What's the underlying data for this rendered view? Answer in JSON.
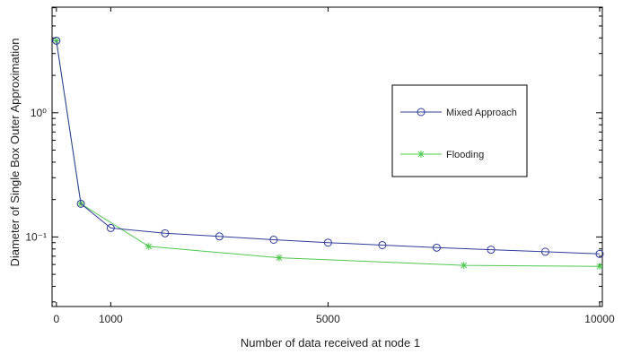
{
  "chart_data": {
    "type": "line",
    "xlabel": "Number of data received at node 1",
    "ylabel": "Diameter of Single Box Outer Approximation",
    "xlim": [
      -80,
      10050
    ],
    "ylim_log10": [
      -1.56,
      0.85
    ],
    "yscale": "log",
    "x_ticks": [
      0,
      1000,
      5000,
      10000
    ],
    "x_tick_labels": [
      "0",
      "1000",
      "5000",
      "10000"
    ],
    "y_ticks": [
      0.1,
      1
    ],
    "y_tick_labels": [
      "10⁻¹",
      "10⁰"
    ],
    "legend_position": "right-middle",
    "grid": false,
    "series": [
      {
        "name": "Mixed Approach",
        "color": "#2f3c99",
        "marker": "circle",
        "x": [
          0,
          450,
          1000,
          2000,
          3000,
          4000,
          5000,
          6000,
          7000,
          8000,
          9000,
          10000
        ],
        "y": [
          3.8,
          0.185,
          0.118,
          0.107,
          0.101,
          0.095,
          0.09,
          0.086,
          0.082,
          0.079,
          0.076,
          0.073
        ]
      },
      {
        "name": "Flooding",
        "color": "#4fc84f",
        "marker": "star",
        "x": [
          0,
          450,
          1700,
          4100,
          7500,
          10000
        ],
        "y": [
          3.8,
          0.185,
          0.084,
          0.068,
          0.059,
          0.058
        ]
      }
    ]
  }
}
